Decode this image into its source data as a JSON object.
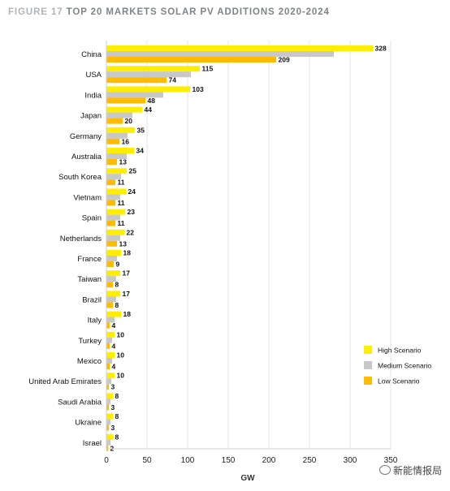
{
  "figure": {
    "number": "FIGURE 17",
    "title": "TOP 20 MARKETS SOLAR PV ADDITIONS 2020-2024"
  },
  "watermark": {
    "text": "新能情报局",
    "icon": "wechat-icon"
  },
  "chart_data": {
    "type": "bar",
    "orientation": "horizontal",
    "categories": [
      "China",
      "USA",
      "India",
      "Japan",
      "Germany",
      "Australia",
      "South Korea",
      "Vietnam",
      "Spain",
      "Netherlands",
      "France",
      "Taiwan",
      "Brazil",
      "Italy",
      "Turkey",
      "Mexico",
      "United Arab Emirates",
      "Saudi Arabia",
      "Ukraine",
      "Israel"
    ],
    "series": [
      {
        "name": "High Scenario",
        "color": "#ffee00",
        "values": [
          328,
          115,
          103,
          44,
          35,
          34,
          25,
          24,
          23,
          22,
          18,
          17,
          17,
          18,
          10,
          10,
          10,
          8,
          8,
          8
        ]
      },
      {
        "name": "Medium Scenario",
        "color": "#c8c8c8",
        "values": [
          280,
          104,
          70,
          32,
          26,
          25,
          18,
          17,
          17,
          17,
          13,
          12,
          12,
          10,
          7,
          7,
          6,
          5,
          5,
          5
        ]
      },
      {
        "name": "Low Scenario",
        "color": "#ffbb00",
        "values": [
          209,
          74,
          48,
          20,
          16,
          13,
          11,
          11,
          11,
          13,
          9,
          8,
          8,
          4,
          4,
          4,
          3,
          3,
          3,
          2
        ]
      }
    ],
    "labeled_series": [
      "High Scenario",
      "Low Scenario"
    ],
    "xlabel": "GW",
    "xlim": [
      0,
      350
    ],
    "xticks": [
      0,
      50,
      100,
      150,
      200,
      250,
      300,
      350
    ],
    "grid": true,
    "legend_position": "right"
  }
}
